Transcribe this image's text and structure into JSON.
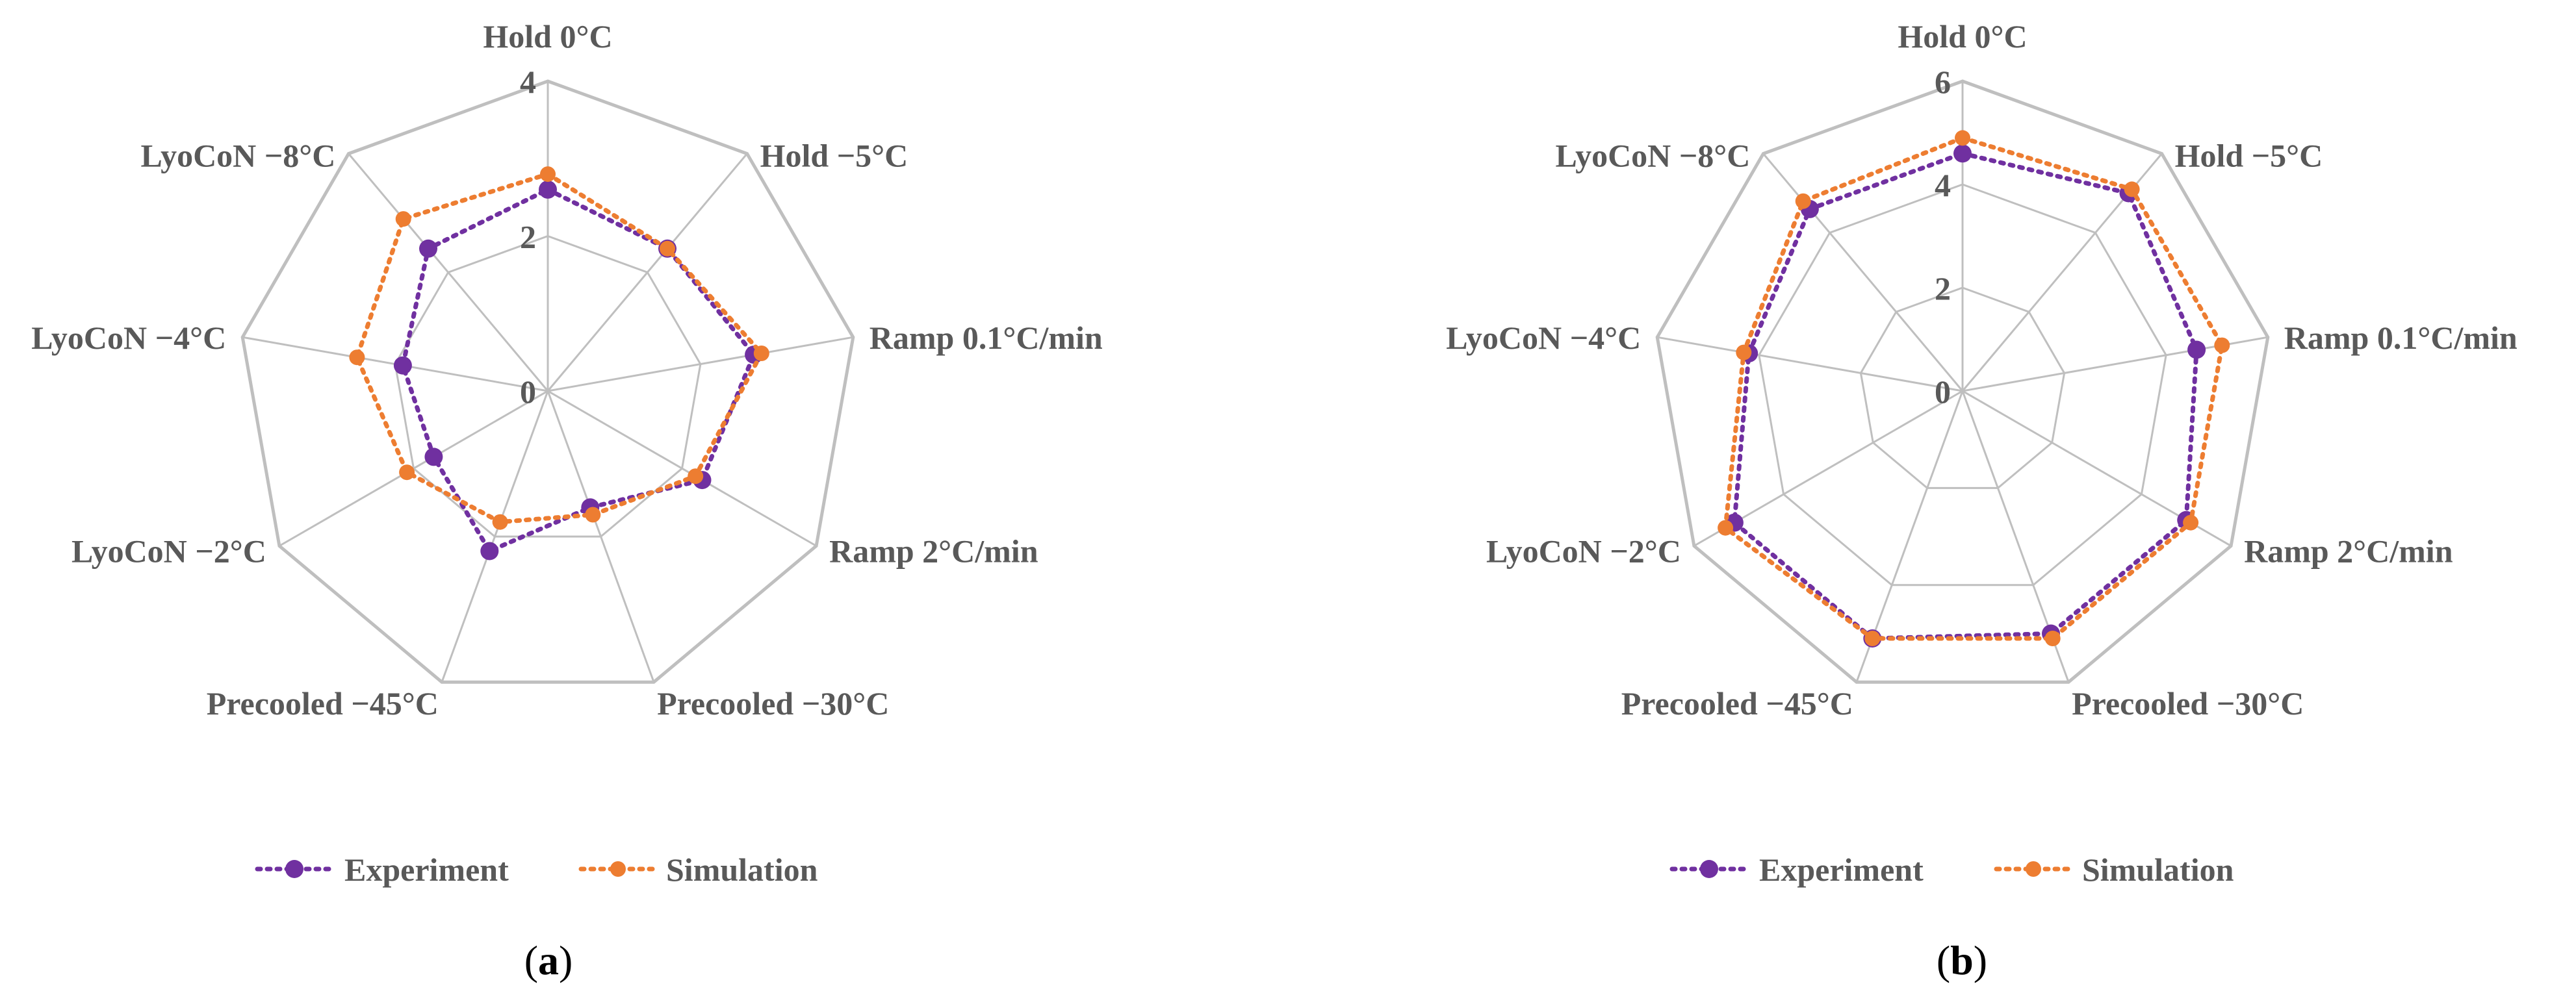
{
  "colors": {
    "experiment": "#7030A0",
    "simulation": "#ED7D31",
    "grid": "#BFBFBF",
    "text": "#595959"
  },
  "legend": {
    "experiment_label": "Experiment",
    "simulation_label": "Simulation"
  },
  "panels": [
    {
      "open": "(",
      "letter": "a",
      "close": ")"
    },
    {
      "open": "(",
      "letter": "b",
      "close": ")"
    }
  ],
  "chart_data": [
    {
      "type": "radar",
      "categories": [
        "Hold 0°C",
        "Hold −5°C",
        "Ramp 0.1°C/min",
        "Ramp 2°C/min",
        "Precooled −30°C",
        "Precooled −45°C",
        "LyoCoN −2°C",
        "LyoCoN −4°C",
        "LyoCoN −8°C"
      ],
      "rlim": [
        0,
        4
      ],
      "ticks": [
        0,
        2,
        4
      ],
      "tick_labels": [
        "0",
        "2",
        "4"
      ],
      "grid": true,
      "legend_position": "bottom",
      "series": [
        {
          "name": "Experiment",
          "values": [
            2.6,
            2.4,
            2.7,
            2.3,
            1.6,
            2.2,
            1.7,
            1.9,
            2.4
          ]
        },
        {
          "name": "Simulation",
          "values": [
            2.8,
            2.4,
            2.8,
            2.2,
            1.7,
            1.8,
            2.1,
            2.5,
            2.9
          ]
        }
      ]
    },
    {
      "type": "radar",
      "categories": [
        "Hold 0°C",
        "Hold −5°C",
        "Ramp 0.1°C/min",
        "Ramp 2°C/min",
        "Precooled −30°C",
        "Precooled −45°C",
        "LyoCoN −2°C",
        "LyoCoN −4°C",
        "LyoCoN −8°C"
      ],
      "rlim": [
        0,
        6
      ],
      "ticks": [
        0,
        2,
        4,
        6
      ],
      "tick_labels": [
        "0",
        "2",
        "4",
        "6"
      ],
      "grid": true,
      "legend_position": "bottom",
      "series": [
        {
          "name": "Experiment",
          "values": [
            4.6,
            5.0,
            4.6,
            5.0,
            5.0,
            5.1,
            5.1,
            4.2,
            4.6
          ]
        },
        {
          "name": "Simulation",
          "values": [
            4.9,
            5.1,
            5.1,
            5.1,
            5.1,
            5.1,
            5.3,
            4.3,
            4.8
          ]
        }
      ]
    }
  ]
}
